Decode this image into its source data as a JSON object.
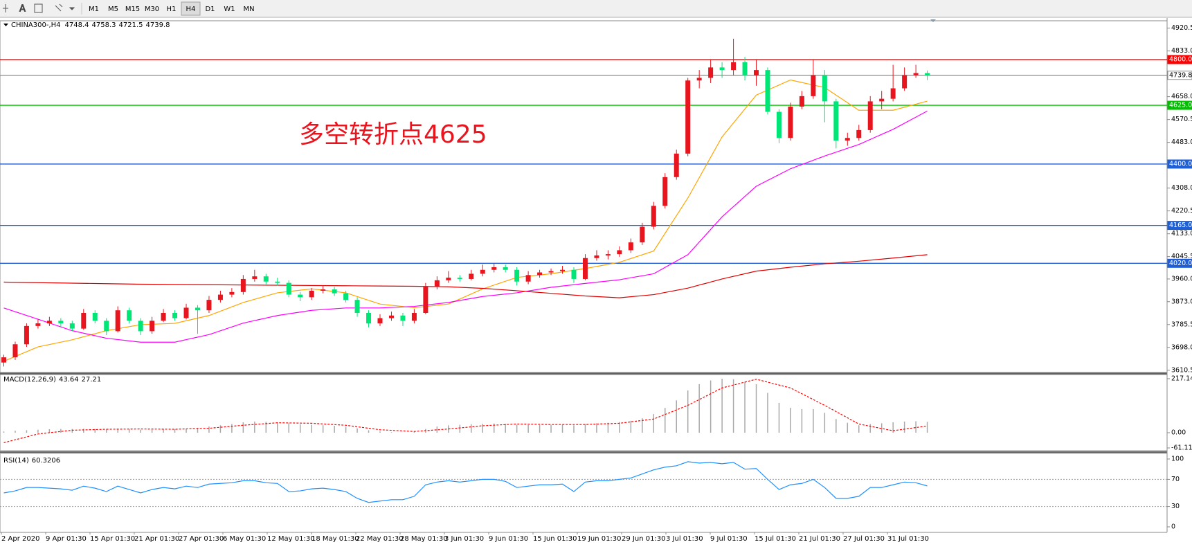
{
  "toolbar": {
    "timeframes": [
      "M1",
      "M5",
      "M15",
      "M30",
      "H1",
      "H4",
      "D1",
      "W1",
      "MN"
    ]
  },
  "chart_data": {
    "type": "candlestick",
    "title": "CHINA300-,H4",
    "header_values": [
      4748.4,
      4758.3,
      4721.5,
      4739.8
    ],
    "annotation": "多空转折点4625",
    "up_color": "#e8141e",
    "down_color": "#00e676",
    "ylim": [
      3610.5,
      4920.5
    ],
    "yticks": [
      4920.5,
      {
        "value": 4833,
        "label": "4833.0"
      },
      {
        "value": 4658,
        "label": "4658.0"
      },
      4570.5,
      {
        "value": 4483,
        "label": "4483.0"
      },
      {
        "value": 4308,
        "label": "4308.0"
      },
      4220.5,
      {
        "value": 4133,
        "label": "4133.0"
      },
      4045.5,
      {
        "value": 3960,
        "label": "3960.0"
      },
      {
        "value": 3873,
        "label": "3873.0"
      },
      3785.5,
      {
        "value": 3698,
        "label": "3698.0"
      },
      3610.5
    ],
    "levels": [
      {
        "value": 4800,
        "label": "4800.0",
        "color": "#ff0000"
      },
      {
        "value": 4739.8,
        "label": "4739.8",
        "color": "#8a8a8a"
      },
      {
        "value": 4625,
        "label": "4625.0",
        "color": "#00c000"
      },
      {
        "value": 4400,
        "label": "4400.0",
        "color": "#1f5fd6"
      },
      {
        "value": 4165,
        "label": "4165.0",
        "color": "#1f5fd6"
      },
      {
        "value": 4020,
        "label": "4020.0",
        "color": "#1f5fd6"
      }
    ],
    "time_labels": [
      "2 Apr 2020",
      "9 Apr 01:30",
      "15 Apr 01:30",
      "21 Apr 01:30",
      "27 Apr 01:30",
      "6 May 01:30",
      "12 May 01:30",
      "18 May 01:30",
      "22 May 01:30",
      "28 May 01:30",
      "3 Jun 01:30",
      "9 Jun 01:30",
      "15 Jun 01:30",
      "19 Jun 01:30",
      "29 Jun 01:30",
      "3 Jul 01:30",
      "9 Jul 01:30",
      "15 Jul 01:30",
      "21 Jul 01:30",
      "27 Jul 01:30",
      "31 Jul 01:30"
    ],
    "candles": [
      [
        3640,
        3670,
        3625,
        3660
      ],
      [
        3660,
        3720,
        3650,
        3710
      ],
      [
        3710,
        3790,
        3700,
        3780
      ],
      [
        3780,
        3805,
        3770,
        3790
      ],
      [
        3790,
        3815,
        3780,
        3800
      ],
      [
        3800,
        3810,
        3775,
        3790
      ],
      [
        3790,
        3800,
        3760,
        3770
      ],
      [
        3770,
        3845,
        3765,
        3830
      ],
      [
        3830,
        3840,
        3790,
        3800
      ],
      [
        3800,
        3810,
        3745,
        3760
      ],
      [
        3760,
        3855,
        3755,
        3840
      ],
      [
        3840,
        3850,
        3790,
        3800
      ],
      [
        3800,
        3810,
        3745,
        3760
      ],
      [
        3760,
        3815,
        3750,
        3800
      ],
      [
        3800,
        3845,
        3795,
        3830
      ],
      [
        3830,
        3840,
        3800,
        3810
      ],
      [
        3810,
        3865,
        3805,
        3850
      ],
      [
        3850,
        3860,
        3750,
        3840
      ],
      [
        3840,
        3895,
        3830,
        3880
      ],
      [
        3880,
        3915,
        3870,
        3900
      ],
      [
        3900,
        3925,
        3890,
        3910
      ],
      [
        3910,
        3975,
        3900,
        3960
      ],
      [
        3960,
        3995,
        3950,
        3970
      ],
      [
        3970,
        3980,
        3940,
        3950
      ],
      [
        3950,
        3965,
        3935,
        3945
      ],
      [
        3945,
        3955,
        3890,
        3900
      ],
      [
        3900,
        3910,
        3875,
        3890
      ],
      [
        3890,
        3925,
        3880,
        3915
      ],
      [
        3915,
        3935,
        3905,
        3920
      ],
      [
        3920,
        3930,
        3895,
        3905
      ],
      [
        3905,
        3915,
        3870,
        3880
      ],
      [
        3880,
        3890,
        3815,
        3830
      ],
      [
        3830,
        3840,
        3775,
        3790
      ],
      [
        3790,
        3825,
        3780,
        3810
      ],
      [
        3810,
        3835,
        3800,
        3820
      ],
      [
        3820,
        3830,
        3780,
        3800
      ],
      [
        3800,
        3845,
        3790,
        3830
      ],
      [
        3830,
        3945,
        3825,
        3930
      ],
      [
        3930,
        3970,
        3920,
        3955
      ],
      [
        3955,
        3990,
        3945,
        3965
      ],
      [
        3965,
        3975,
        3950,
        3960
      ],
      [
        3960,
        3995,
        3955,
        3980
      ],
      [
        3980,
        4015,
        3970,
        3995
      ],
      [
        3995,
        4020,
        3985,
        4005
      ],
      [
        4005,
        4015,
        3985,
        3995
      ],
      [
        3995,
        4005,
        3935,
        3950
      ],
      [
        3950,
        3990,
        3940,
        3975
      ],
      [
        3975,
        3995,
        3965,
        3985
      ],
      [
        3985,
        4000,
        3975,
        3990
      ],
      [
        3990,
        4010,
        3980,
        3995
      ],
      [
        3995,
        4005,
        3945,
        3960
      ],
      [
        3960,
        4055,
        3955,
        4040
      ],
      [
        4040,
        4070,
        4030,
        4050
      ],
      [
        4050,
        4070,
        4035,
        4055
      ],
      [
        4055,
        4085,
        4045,
        4070
      ],
      [
        4070,
        4115,
        4060,
        4100
      ],
      [
        4100,
        4175,
        4090,
        4160
      ],
      [
        4160,
        4255,
        4150,
        4240
      ],
      [
        4240,
        4365,
        4230,
        4350
      ],
      [
        4350,
        4455,
        4340,
        4440
      ],
      [
        4440,
        4730,
        4430,
        4720
      ],
      [
        4720,
        4760,
        4690,
        4730
      ],
      [
        4730,
        4800,
        4710,
        4770
      ],
      [
        4770,
        4790,
        4730,
        4760
      ],
      [
        4760,
        4880,
        4740,
        4790
      ],
      [
        4790,
        4810,
        4720,
        4740
      ],
      [
        4740,
        4800,
        4700,
        4760
      ],
      [
        4760,
        4770,
        4590,
        4600
      ],
      [
        4600,
        4610,
        4480,
        4500
      ],
      [
        4500,
        4635,
        4490,
        4620
      ],
      [
        4620,
        4680,
        4610,
        4660
      ],
      [
        4660,
        4800,
        4650,
        4740
      ],
      [
        4740,
        4760,
        4560,
        4640
      ],
      [
        4640,
        4650,
        4460,
        4490
      ],
      [
        4490,
        4520,
        4470,
        4500
      ],
      [
        4500,
        4550,
        4490,
        4530
      ],
      [
        4530,
        4660,
        4520,
        4640
      ],
      [
        4640,
        4680,
        4610,
        4650
      ],
      [
        4650,
        4780,
        4640,
        4690
      ],
      [
        4690,
        4770,
        4680,
        4740
      ],
      [
        4740,
        4780,
        4730,
        4748.4
      ],
      [
        4748.4,
        4758.3,
        4721.5,
        4739.8
      ]
    ],
    "ma": {
      "x": [
        0,
        3,
        6,
        9,
        12,
        15,
        18,
        21,
        24,
        27,
        30,
        33,
        36,
        39,
        42,
        45,
        48,
        51,
        54,
        57,
        60,
        63,
        66,
        69,
        72,
        75,
        78,
        81
      ],
      "series": [
        {
          "color": "#ffa500",
          "values": [
            3645,
            3700,
            3727,
            3762,
            3785,
            3790,
            3820,
            3870,
            3907,
            3922,
            3907,
            3864,
            3850,
            3864,
            3922,
            3966,
            3980,
            4000,
            4024,
            4067,
            4270,
            4504,
            4664,
            4722,
            4693,
            4606,
            4606,
            4641
          ]
        },
        {
          "color": "#ff00ff",
          "values": [
            3849,
            3806,
            3762,
            3733,
            3718,
            3718,
            3747,
            3791,
            3820,
            3840,
            3849,
            3849,
            3855,
            3870,
            3893,
            3907,
            3928,
            3943,
            3957,
            3980,
            4053,
            4198,
            4315,
            4382,
            4431,
            4475,
            4533,
            4603
          ]
        },
        {
          "color": "#e00000",
          "values": [
            3948,
            3946,
            3944,
            3942,
            3940,
            3939,
            3938,
            3937,
            3936,
            3935,
            3934,
            3933,
            3932,
            3930,
            3924,
            3915,
            3905,
            3895,
            3888,
            3900,
            3925,
            3960,
            3990,
            4005,
            4018,
            4028,
            4040,
            4053
          ]
        }
      ]
    },
    "macd": {
      "title": "MACD(12,26,9)",
      "header_values": [
        43.64,
        27.21
      ],
      "ylim": [
        -61.11,
        217.14
      ],
      "yticks": [
        217.14,
        {
          "value": 0,
          "label": "0.00"
        },
        -61.11
      ],
      "hist_color": "#a8a8a8",
      "signal_color": "#ff0000",
      "hist": [
        5,
        8,
        10,
        12,
        14,
        15,
        15,
        16,
        15,
        14,
        15,
        14,
        12,
        12,
        13,
        14,
        16,
        20,
        25,
        30,
        35,
        42,
        45,
        44,
        42,
        38,
        34,
        32,
        30,
        28,
        24,
        18,
        10,
        5,
        2,
        0,
        3,
        15,
        25,
        30,
        32,
        34,
        36,
        37,
        36,
        32,
        31,
        31,
        31,
        32,
        30,
        35,
        38,
        40,
        43,
        48,
        58,
        75,
        100,
        130,
        170,
        195,
        210,
        217,
        215,
        205,
        195,
        160,
        120,
        100,
        95,
        95,
        80,
        55,
        40,
        30,
        35,
        38,
        42,
        45,
        46,
        43.64
      ],
      "signal": [
        -40,
        -5,
        10,
        14,
        15,
        14,
        18,
        30,
        40,
        38,
        30,
        12,
        5,
        15,
        28,
        35,
        33,
        33,
        38,
        55,
        110,
        180,
        215,
        180,
        110,
        35,
        8,
        27.21
      ]
    },
    "rsi": {
      "title": "RSI(14)",
      "header_value": 60.3206,
      "ylim": [
        0,
        100
      ],
      "yticks": [
        100,
        70,
        30,
        0
      ],
      "color": "#1e90ff",
      "values": [
        50,
        53,
        58,
        58,
        57,
        56,
        54,
        60,
        57,
        52,
        60,
        55,
        50,
        55,
        58,
        56,
        60,
        58,
        63,
        64,
        65,
        68,
        68,
        65,
        64,
        52,
        53,
        56,
        57,
        55,
        52,
        42,
        36,
        38,
        40,
        40,
        45,
        62,
        66,
        68,
        66,
        68,
        70,
        70,
        67,
        58,
        60,
        62,
        62,
        63,
        52,
        66,
        68,
        68,
        70,
        72,
        78,
        84,
        88,
        90,
        96,
        94,
        95,
        93,
        95,
        85,
        86,
        70,
        55,
        62,
        64,
        70,
        58,
        42,
        42,
        45,
        58,
        58,
        62,
        66,
        65,
        60.3206
      ]
    }
  }
}
